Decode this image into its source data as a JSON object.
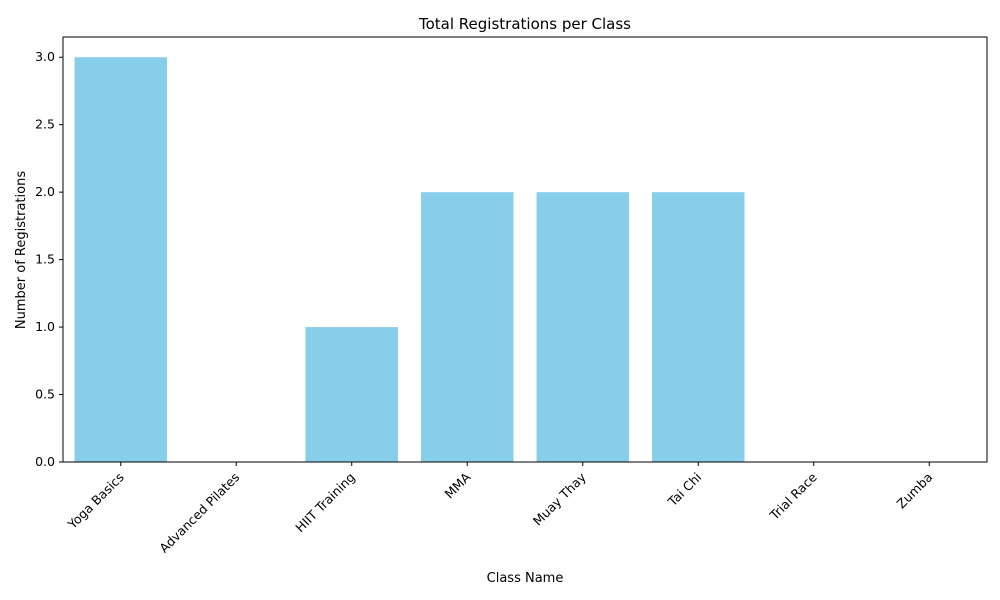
{
  "chart_data": {
    "type": "bar",
    "title": "Total Registrations per Class",
    "xlabel": "Class Name",
    "ylabel": "Number of Registrations",
    "categories": [
      "Yoga Basics",
      "Advanced Pilates",
      "HIIT Training",
      "MMA",
      "Muay Thay",
      "Tai Chi",
      "Trial Race",
      "Zumba"
    ],
    "values": [
      3,
      0,
      1,
      2,
      2,
      2,
      0,
      0
    ],
    "ylim": [
      0,
      3.15
    ],
    "yticks": [
      0.0,
      0.5,
      1.0,
      1.5,
      2.0,
      2.5,
      3.0
    ],
    "ytick_labels": [
      "0.0",
      "0.5",
      "1.0",
      "1.5",
      "2.0",
      "2.5",
      "3.0"
    ],
    "grid": false,
    "bar_color": "#87ceeb"
  }
}
